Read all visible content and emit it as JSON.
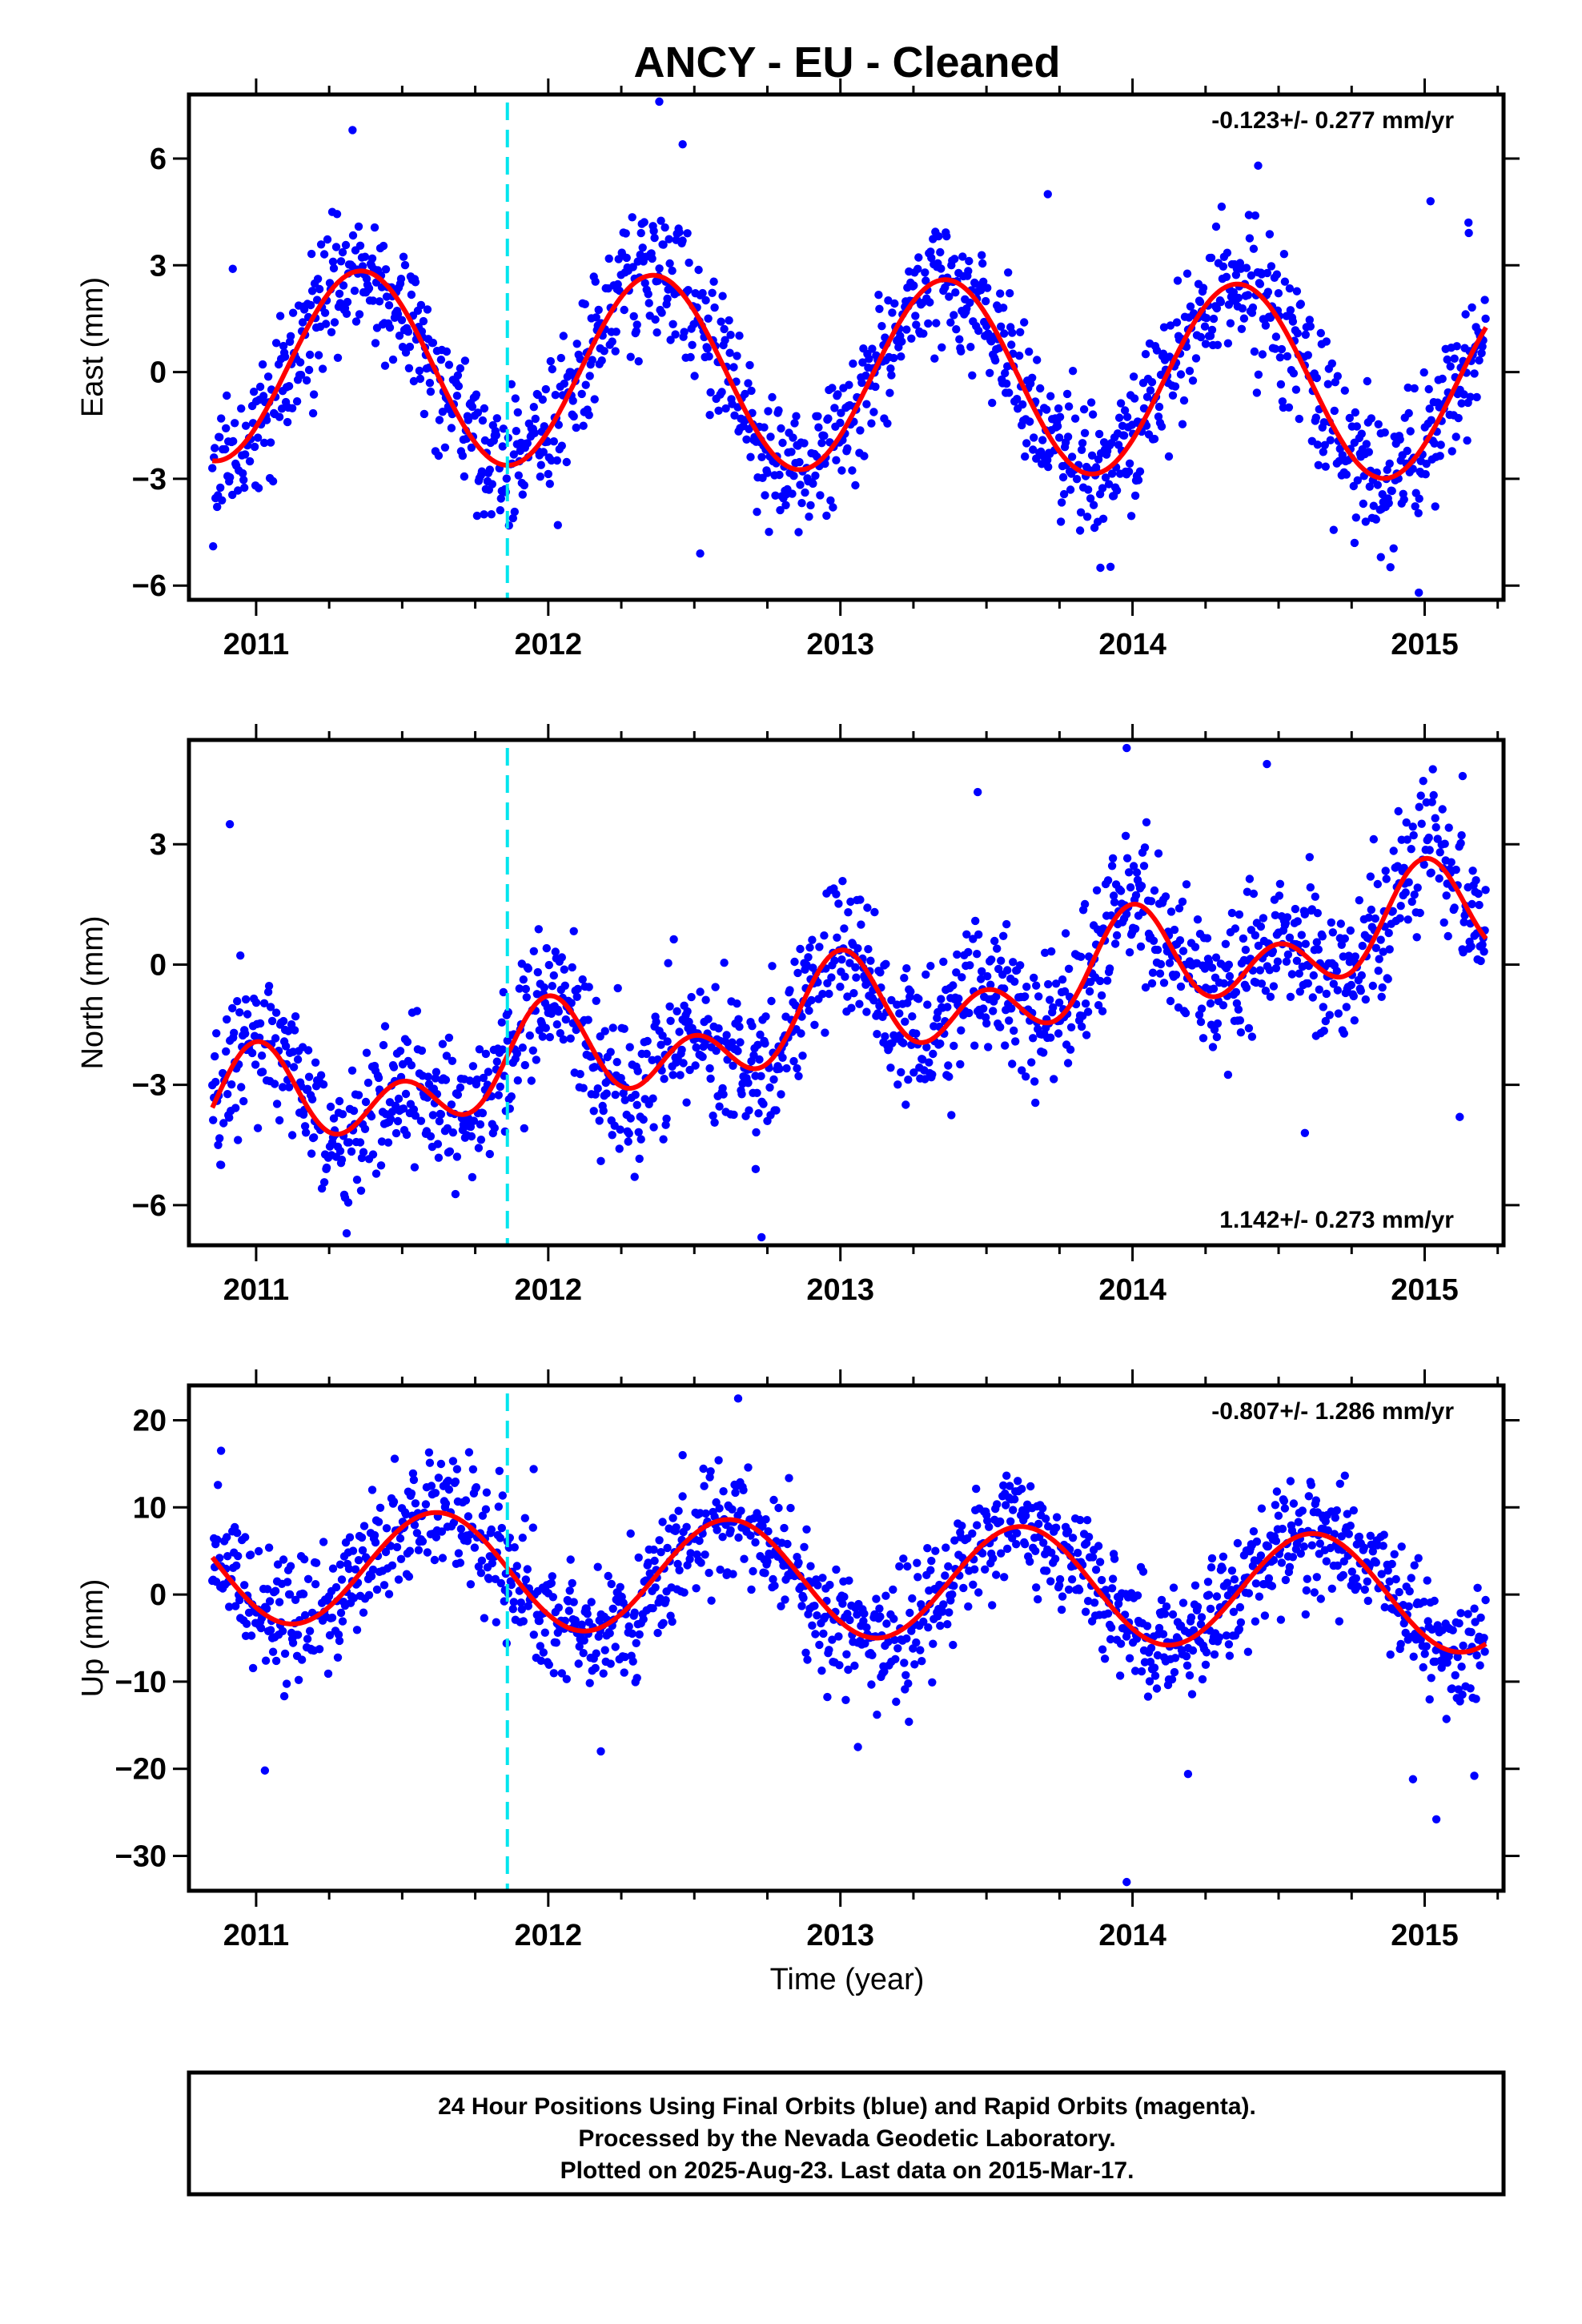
{
  "title": "ANCY  - EU - Cleaned",
  "xlabel": "Time (year)",
  "footer": {
    "line1": "24 Hour Positions Using Final Orbits (blue) and Rapid Orbits (magenta).",
    "line2": "Processed by the Nevada Geodetic Laboratory.",
    "line3": "Plotted on 2025-Aug-23. Last data on 2015-Mar-17."
  },
  "colors": {
    "points": "#0000ff",
    "model": "#ff0000",
    "break": "#00e5ee",
    "axes": "#000000"
  },
  "chart_data": [
    {
      "type": "scatter",
      "ylabel": "East (mm)",
      "rate": "-0.123+/- 0.277 mm/yr",
      "rate_position": "top-right",
      "xlim": [
        2010.77,
        2015.27
      ],
      "ylim": [
        -6.4,
        7.8
      ],
      "yticks": [
        -6,
        -3,
        0,
        3,
        6
      ],
      "ytick_labels": [
        "−6",
        "−3",
        "0",
        "3",
        "6"
      ],
      "xticks": [
        2011,
        2012,
        2013,
        2014,
        2015
      ],
      "xtick_labels": [
        "2011",
        "2012",
        "2013",
        "2014",
        "2015"
      ],
      "x_start": 2010.85,
      "x_end": 2015.21,
      "break_epoch": 2011.86,
      "grid": false,
      "model": {
        "offset": -0.06,
        "trend": -0.123,
        "annual_amp": 2.7,
        "annual_peak": 2011.36,
        "semiannual_amp": 0.0,
        "semiannual_peak": 2011.0
      },
      "noise_sd": 0.95,
      "outliers": [
        {
          "x": 2012.38,
          "y": 7.6
        },
        {
          "x": 2011.33,
          "y": 6.8
        },
        {
          "x": 2012.46,
          "y": 6.4
        },
        {
          "x": 2014.43,
          "y": 5.8
        },
        {
          "x": 2013.71,
          "y": 5.0
        },
        {
          "x": 2015.02,
          "y": 4.8
        },
        {
          "x": 2015.15,
          "y": 4.2
        },
        {
          "x": 2010.92,
          "y": 2.9
        },
        {
          "x": 2012.52,
          "y": -5.1
        },
        {
          "x": 2013.89,
          "y": -5.5
        },
        {
          "x": 2014.85,
          "y": -5.2
        },
        {
          "x": 2014.98,
          "y": -6.2
        },
        {
          "x": 2014.76,
          "y": -4.8
        },
        {
          "x": 2011.78,
          "y": -4.0
        }
      ]
    },
    {
      "type": "scatter",
      "ylabel": "North (mm)",
      "rate": "1.142+/- 0.273 mm/yr",
      "rate_position": "bottom-right",
      "xlim": [
        2010.77,
        2015.27
      ],
      "ylim": [
        -7.0,
        5.6
      ],
      "yticks": [
        -6,
        -3,
        0,
        3
      ],
      "ytick_labels": [
        "−6",
        "−3",
        "0",
        "3"
      ],
      "xticks": [
        2011,
        2012,
        2013,
        2014,
        2015
      ],
      "xtick_labels": [
        "2011",
        "2012",
        "2013",
        "2014",
        "2015"
      ],
      "x_start": 2010.85,
      "x_end": 2015.21,
      "break_epoch": 2011.86,
      "grid": false,
      "model": {
        "offset": -1.3,
        "trend": 1.142,
        "annual_amp": 0.78,
        "annual_peak": 2011.0,
        "semiannual_amp": 0.88,
        "semiannual_peak": 2011.0
      },
      "noise_sd": 0.85,
      "outliers": [
        {
          "x": 2013.98,
          "y": 5.4
        },
        {
          "x": 2014.46,
          "y": 5.0
        },
        {
          "x": 2015.13,
          "y": 4.7
        },
        {
          "x": 2010.91,
          "y": 3.5
        },
        {
          "x": 2013.47,
          "y": 4.3
        },
        {
          "x": 2012.73,
          "y": -6.8
        },
        {
          "x": 2012.71,
          "y": -5.1
        },
        {
          "x": 2011.24,
          "y": -5.1
        },
        {
          "x": 2010.87,
          "y": -4.5
        },
        {
          "x": 2014.59,
          "y": -4.2
        },
        {
          "x": 2015.12,
          "y": -3.8
        },
        {
          "x": 2012.18,
          "y": -4.9
        }
      ]
    },
    {
      "type": "scatter",
      "ylabel": "Up (mm)",
      "rate": "-0.807+/- 1.286 mm/yr",
      "rate_position": "top-right",
      "xlim": [
        2010.77,
        2015.27
      ],
      "ylim": [
        -34.0,
        24.0
      ],
      "yticks": [
        -30,
        -20,
        -10,
        0,
        10,
        20
      ],
      "ytick_labels": [
        "−30",
        "−20",
        "−10",
        "0",
        "10",
        "20"
      ],
      "xticks": [
        2011,
        2012,
        2013,
        2014,
        2015
      ],
      "xtick_labels": [
        "2011",
        "2012",
        "2013",
        "2014",
        "2015"
      ],
      "x_start": 2010.85,
      "x_end": 2015.21,
      "break_epoch": 2011.86,
      "grid": false,
      "model": {
        "offset": 1.7,
        "trend": -0.807,
        "annual_amp": 6.6,
        "annual_peak": 2011.62,
        "semiannual_amp": 0.0,
        "semiannual_peak": 2011.0
      },
      "noise_sd": 3.3,
      "outliers": [
        {
          "x": 2012.65,
          "y": 22.5
        },
        {
          "x": 2012.46,
          "y": 16.0
        },
        {
          "x": 2010.88,
          "y": 16.5
        },
        {
          "x": 2013.98,
          "y": -33.0
        },
        {
          "x": 2015.04,
          "y": -25.8
        },
        {
          "x": 2014.96,
          "y": -21.2
        },
        {
          "x": 2011.03,
          "y": -20.2
        },
        {
          "x": 2014.19,
          "y": -20.6
        },
        {
          "x": 2015.17,
          "y": -20.8
        },
        {
          "x": 2011.95,
          "y": 14.4
        },
        {
          "x": 2013.06,
          "y": -17.5
        },
        {
          "x": 2012.18,
          "y": -18.0
        }
      ]
    }
  ]
}
